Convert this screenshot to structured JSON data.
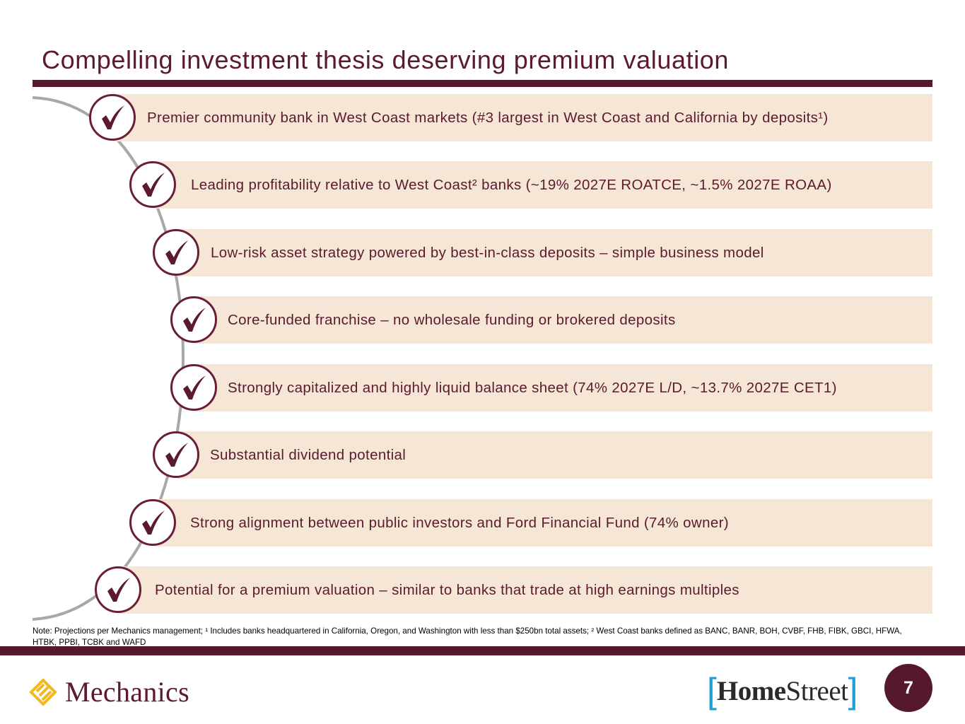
{
  "slide": {
    "title": "Compelling investment thesis deserving premium valuation",
    "page_number": "7"
  },
  "thesis_points": [
    "Premier community bank in West Coast markets (#3 largest in West Coast and California by deposits¹)",
    "Leading profitability relative to West Coast² banks (~19% 2027E ROATCE, ~1.5% 2027E ROAA)",
    "Low-risk asset strategy powered by best-in-class deposits – simple business model",
    "Core-funded franchise – no wholesale funding or brokered deposits",
    "Strongly capitalized and highly liquid balance sheet (74% 2027E L/D, ~13.7% 2027E CET1)",
    "Substantial dividend potential",
    "Strong alignment between public investors and Ford Financial Fund (74% owner)",
    "Potential for a premium valuation – similar to banks that trade at high earnings multiples"
  ],
  "footnote": "Note: Projections per Mechanics management; ¹ Includes banks headquartered in California, Oregon, and Washington with less than $250bn total assets; ² West Coast banks defined as BANC, BANR, BOH, CVBF, FHB, FIBK, GBCI, HFWA, HTBK, PPBI, TCBK and WAFD",
  "logos": {
    "left": "Mechanics",
    "right_bold": "Home",
    "right_regular": "Street",
    "bracket_open": "[",
    "bracket_close": "]"
  },
  "icons": {
    "check": "check-icon",
    "mechanics_mark": "mechanics-logo-mark"
  },
  "colors": {
    "maroon": "#55192b",
    "text_maroon": "#5b1a2e",
    "bar_fill": "#f6e6d6",
    "arc_gray": "#a8a8a8",
    "homestreet_blue": "#1ba0d8",
    "mechanics_gold": "#f2b81c"
  }
}
